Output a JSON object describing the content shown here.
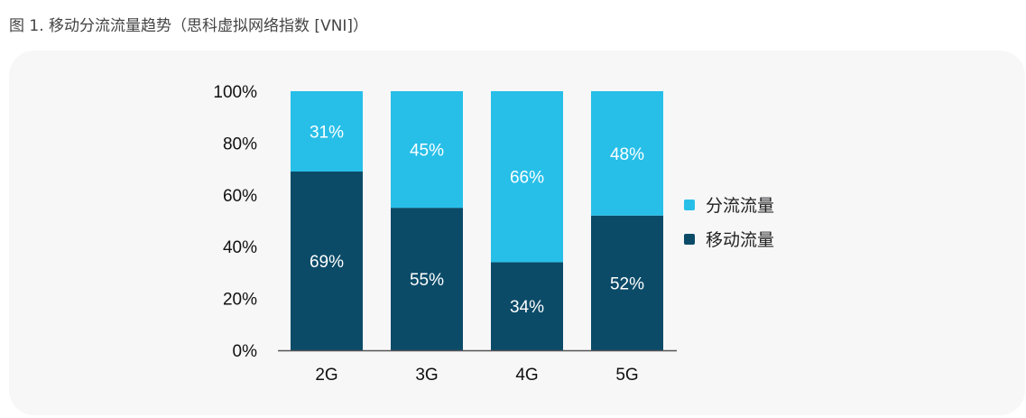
{
  "figure": {
    "caption": "图 1. 移动分流流量趋势（思科虚拟网络指数 [VNI]）"
  },
  "colors": {
    "offload": "#27bfe8",
    "mobile": "#0b4b68",
    "axis": "#555555"
  },
  "chart_data": {
    "type": "bar",
    "stacked": true,
    "categories": [
      "2G",
      "3G",
      "4G",
      "5G"
    ],
    "series": [
      {
        "name": "移动流量",
        "values": [
          69,
          55,
          34,
          52
        ],
        "labels": [
          "69%",
          "55%",
          "34%",
          "52%"
        ]
      },
      {
        "name": "分流流量",
        "values": [
          31,
          45,
          66,
          48
        ],
        "labels": [
          "31%",
          "45%",
          "66%",
          "48%"
        ]
      }
    ],
    "ylim": [
      0,
      100
    ],
    "yticks": [
      "0%",
      "20%",
      "40%",
      "60%",
      "80%",
      "100%"
    ],
    "legend_position": "right",
    "legend": [
      "分流流量",
      "移动流量"
    ],
    "grid": false
  }
}
